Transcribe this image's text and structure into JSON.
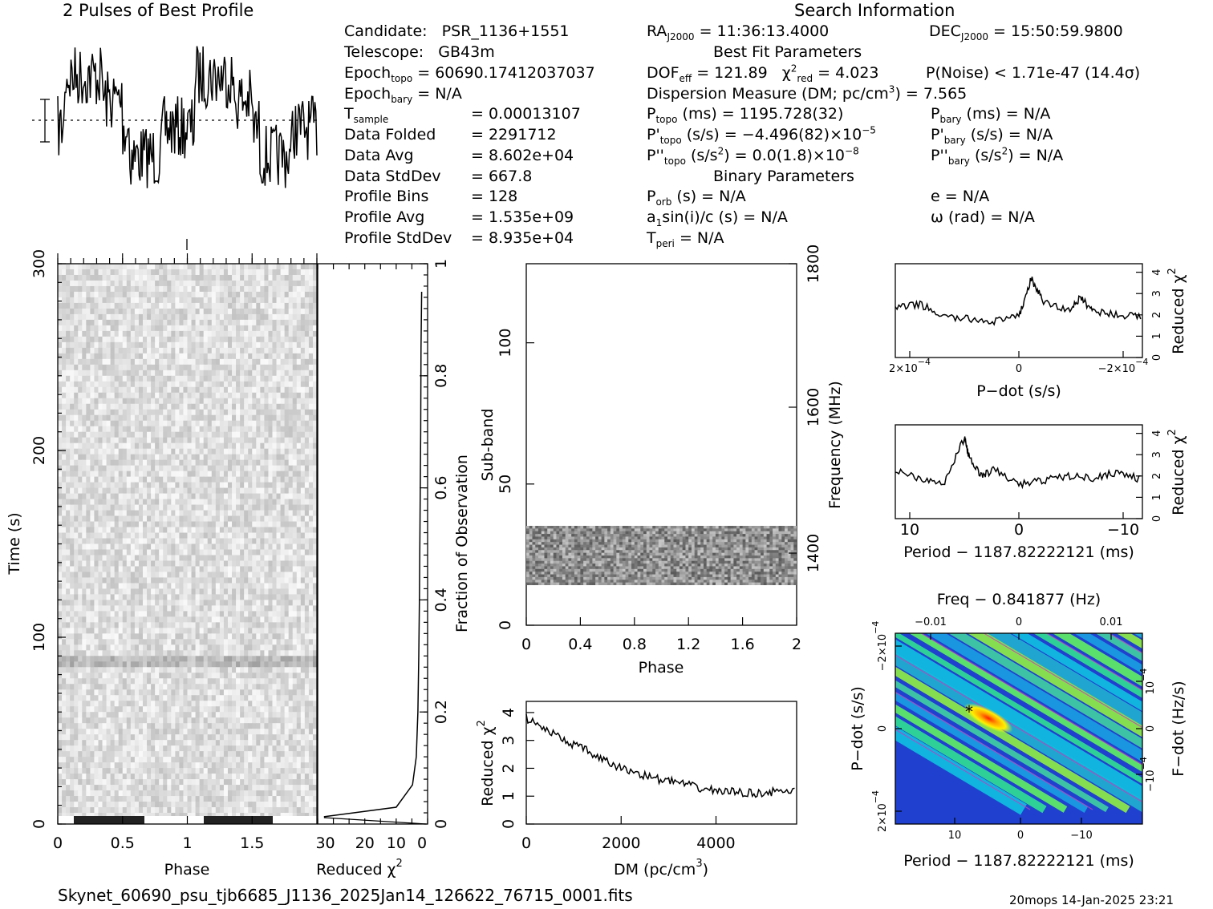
{
  "profile_title": "2 Pulses of Best Profile",
  "search_title": "Search Information",
  "candidate": {
    "candidate_label": "Candidate:",
    "candidate_value": "PSR_1136+1551",
    "telescope_label": "Telescope:",
    "telescope_value": "GB43m",
    "epoch_topo_label": "Epoch",
    "epoch_topo_sub": "topo",
    "epoch_topo_value": "= 60690.17412037037",
    "epoch_bary_label": "Epoch",
    "epoch_bary_sub": "bary",
    "epoch_bary_value": "= N/A",
    "tsample_label": "T",
    "tsample_sub": "sample",
    "tsample_value": "=   0.00013107",
    "data_folded_label": "Data Folded",
    "data_folded_value": "=   2291712",
    "data_avg_label": "Data Avg",
    "data_avg_value": "=   8.602e+04",
    "data_stddev_label": "Data StdDev",
    "data_stddev_value": "=   667.8",
    "profile_bins_label": "Profile Bins",
    "profile_bins_value": "=   128",
    "profile_avg_label": "Profile Avg",
    "profile_avg_value": "=   1.535e+09",
    "profile_stddev_label": "Profile StdDev",
    "profile_stddev_value": "=   8.935e+04"
  },
  "search": {
    "ra_label": "RA",
    "ra_sub": "J2000",
    "ra_value": "= 11:36:13.4000",
    "dec_label": "DEC",
    "dec_sub": "J2000",
    "dec_value": "= 15:50:59.9800",
    "best_fit_heading": "Best Fit Parameters",
    "dof_label": "DOF",
    "dof_sub": "eff",
    "dof_value": "= 121.89",
    "chi_label": "χ",
    "chi_sup": "2",
    "chi_sub": "red",
    "chi_value": "= 4.023",
    "pnoise": "P(Noise) < 1.71e-47   (14.4σ)",
    "dm_label": "Dispersion Measure (DM; pc/cm",
    "dm_sup": "3",
    "dm_value": ") = 7.565",
    "ptopo_label": "P",
    "ptopo_sub": "topo",
    "ptopo_value": "(ms) =  1195.728(32)",
    "pbary_label": "P",
    "pbary_sub": "bary",
    "pbary_value": "(ms) = N/A",
    "pdtopo_label": "P'",
    "pdtopo_sub": "topo",
    "pdtopo_value": "(s/s) = −4.496(82)×10",
    "pdtopo_sup": "−5",
    "pdbary_label": "P'",
    "pdbary_sub": "bary",
    "pdbary_value": "(s/s) = N/A",
    "pddtopo_label": "P''",
    "pddtopo_sub": "topo",
    "pddtopo_value_a": "(s/s",
    "pddtopo_sup_a": "2",
    "pddtopo_value_b": ") = 0.0(1.8)×10",
    "pddtopo_sup_b": "−8",
    "pddbary_label": "P''",
    "pddbary_sub": "bary",
    "pddbary_value_a": "(s/s",
    "pddbary_sup_a": "2",
    "pddbary_value_b": ") = N/A",
    "binary_heading": "Binary Parameters",
    "porb_label": "P",
    "porb_sub": "orb",
    "porb_value": "(s) = N/A",
    "e_value": "e = N/A",
    "a1_label": "a",
    "a1_sub": "1",
    "a1_value": "sin(i)/c (s) = N/A",
    "omega_value": "ω (rad) = N/A",
    "tperi_label": "T",
    "tperi_sub": "peri",
    "tperi_value": "= N/A"
  },
  "filename": "Skynet_60690_psu_tjb6685_J1136_2025Jan14_126622_76715_0001.fits",
  "footer_stamp": "20mops 14-Jan-2025 23:21",
  "chart_data": [
    {
      "type": "line",
      "title": "2 Pulses of Best Profile",
      "x_range": [
        0,
        2
      ],
      "note_pulses": 2
    },
    {
      "type": "heatmap",
      "xlabel": "Phase",
      "ylabel": "Time (s)",
      "xlim": [
        0,
        2
      ],
      "ylim": [
        0,
        300
      ],
      "x_ticks": [
        "0",
        "0.5",
        "1",
        "1.5"
      ],
      "y_ticks": [
        "0",
        "100",
        "200",
        "300"
      ]
    },
    {
      "type": "line",
      "xlabel": "Reduced χ",
      "xlabel_sup": "2",
      "ylabel": "Fraction of Observation",
      "x_ticks": [
        "30",
        "20",
        "10",
        "0"
      ],
      "y_ticks": [
        "0.2",
        "0.4",
        "0.6",
        "0.8",
        "1"
      ],
      "x": [
        33,
        10,
        4.8,
        3.6,
        3.1,
        2.8,
        2.6,
        2.4,
        2.2,
        2.1,
        1.9
      ],
      "y": [
        0.013,
        0.03,
        0.07,
        0.12,
        0.2,
        0.3,
        0.4,
        0.55,
        0.7,
        0.85,
        0.95
      ]
    },
    {
      "type": "heatmap",
      "xlabel": "Phase",
      "ylabel": "Sub-band",
      "ylabel_right": "Frequency (MHz)",
      "xlim": [
        0,
        2
      ],
      "ylim": [
        0,
        128
      ],
      "x_ticks": [
        "0",
        "0.4",
        "0.8",
        "1.2",
        "1.6",
        "2"
      ],
      "y_ticks": [
        "0",
        "50",
        "100"
      ],
      "y_ticks_right": [
        "1400",
        "1600",
        "1800"
      ],
      "band_rows": [
        15,
        35
      ]
    },
    {
      "type": "line",
      "xlabel": "DM (pc/cm",
      "xlabel_sup": "3",
      "xlabel_end": ")",
      "ylabel": "Reduced χ",
      "ylabel_sup": "2",
      "x_ticks": [
        "0",
        "2000",
        "4000"
      ],
      "y_ticks": [
        "0",
        "1",
        "2",
        "3",
        "4"
      ],
      "x": [
        0,
        400,
        800,
        1200,
        1600,
        2000,
        2400,
        2800,
        3200,
        3600,
        4000,
        4400,
        4800,
        5200,
        5700
      ],
      "y": [
        3.8,
        3.4,
        3.0,
        2.7,
        2.3,
        2.0,
        1.8,
        1.6,
        1.5,
        1.3,
        1.2,
        1.15,
        1.1,
        1.15,
        1.2
      ]
    },
    {
      "type": "line",
      "xlabel": "P−dot (s/s)",
      "ylabel": "Reduced χ",
      "ylabel_sup": "2",
      "x_ticks": [
        "2×10",
        "0",
        "−2×10"
      ],
      "x_ticks_sup": "−4",
      "y_ticks": [
        "0",
        "1",
        "2",
        "3",
        "4"
      ],
      "x": [
        0,
        0.1,
        0.2,
        0.3,
        0.4,
        0.5,
        0.55,
        0.6,
        0.7,
        0.75,
        0.8,
        0.9,
        1.0
      ],
      "y": [
        2.3,
        2.5,
        1.9,
        1.8,
        1.7,
        1.9,
        3.7,
        2.6,
        2.2,
        2.8,
        2.2,
        2.0,
        1.9
      ]
    },
    {
      "type": "line",
      "xlabel": "Period − 1187.82222121 (ms)",
      "ylabel": "Reduced χ",
      "ylabel_sup": "2",
      "x_ticks": [
        "10",
        "0",
        "−10"
      ],
      "y_ticks": [
        "0",
        "1",
        "2",
        "3",
        "4"
      ],
      "x": [
        0,
        0.1,
        0.2,
        0.28,
        0.3,
        0.35,
        0.4,
        0.5,
        0.6,
        0.7,
        0.8,
        0.9,
        1.0
      ],
      "y": [
        2.3,
        1.9,
        1.7,
        3.8,
        2.8,
        2.0,
        2.3,
        1.6,
        1.8,
        2.0,
        1.9,
        2.2,
        1.8
      ]
    },
    {
      "type": "heatmap",
      "title": "Freq − 0.841877 (Hz)",
      "xlabel": "Period − 1187.82222121 (ms)",
      "ylabel": "P−dot (s/s)",
      "ylabel_right": "F−dot (Hz/s)",
      "x_ticks": [
        "10",
        "0",
        "−10"
      ],
      "x_ticks_top": [
        "−0.01",
        "0",
        "0.01"
      ],
      "y_ticks": [
        "2×10",
        "0",
        "−2×10"
      ],
      "y_ticks_sup": "−4",
      "y_ticks_right": [
        "−10",
        "0",
        "10"
      ],
      "y_ticks_right_sup": "−4"
    }
  ]
}
